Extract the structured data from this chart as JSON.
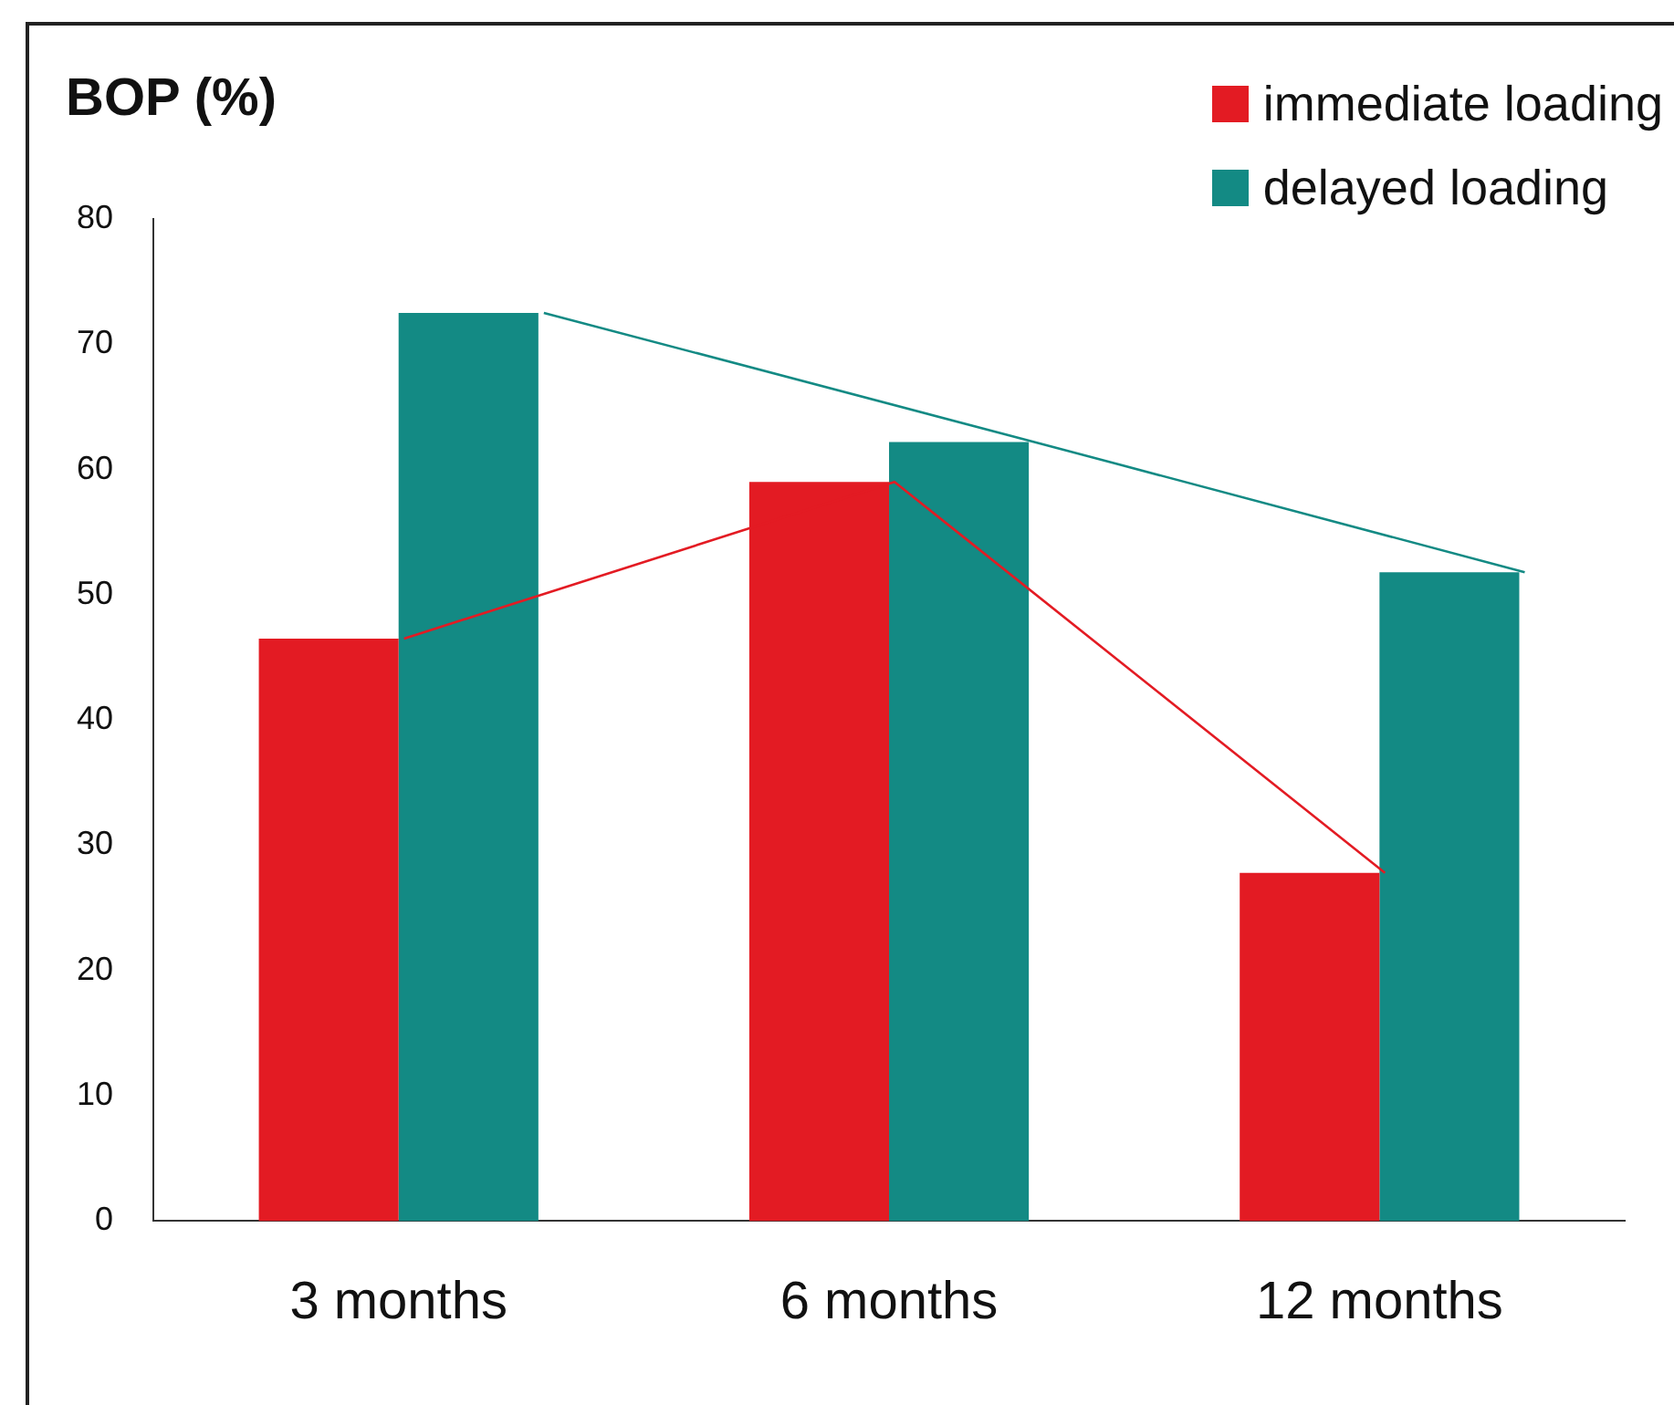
{
  "chart_data": {
    "type": "bar",
    "ylabel": "BOP (%)",
    "categories": [
      "3 months",
      "6 months",
      "12 months"
    ],
    "series": [
      {
        "name": "immediate loading",
        "color": "#e31b23",
        "values": [
          46.5,
          59,
          27.8
        ]
      },
      {
        "name": "delayed loading",
        "color": "#138a84",
        "values": [
          72.5,
          62.2,
          51.8
        ]
      },
      {
        "type": "line",
        "color": "#e31b23",
        "values": [
          46.5,
          59,
          27.8
        ]
      },
      {
        "type": "line",
        "color": "#138a84",
        "values": [
          72.5,
          62.2,
          51.8
        ]
      }
    ],
    "ylim": [
      0,
      80
    ],
    "yticks": [
      0,
      10,
      20,
      30,
      40,
      50,
      60,
      70,
      80
    ],
    "grid": false,
    "legend": "top right"
  }
}
